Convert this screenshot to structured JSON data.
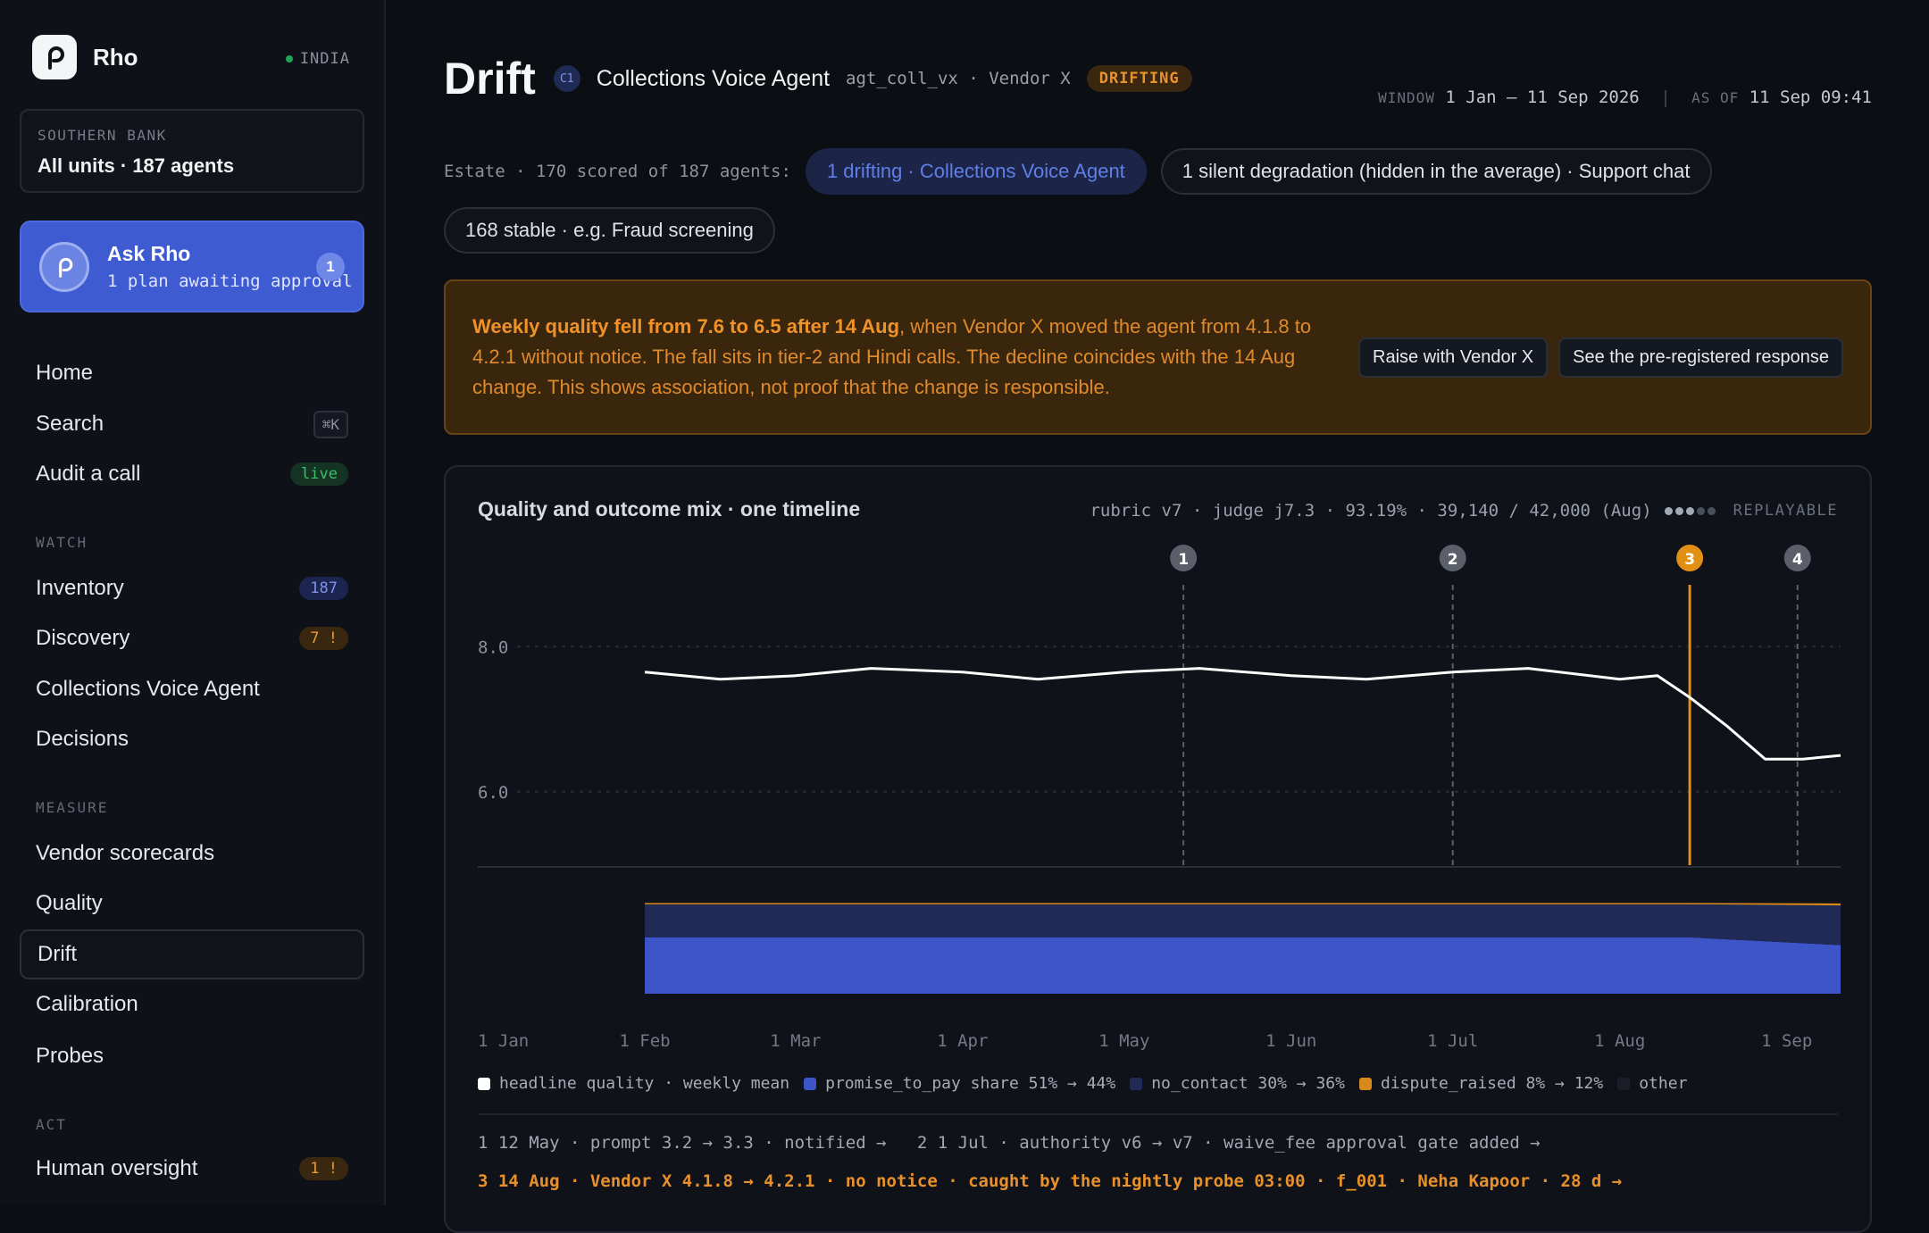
{
  "brand": {
    "name": "Rho",
    "region": "INDIA"
  },
  "org": {
    "label": "SOUTHERN BANK",
    "value": "All units · 187 agents"
  },
  "ask": {
    "title": "Ask Rho",
    "subtitle": "1 plan awaiting approval",
    "badge": "1"
  },
  "nav": {
    "home": "Home",
    "search": "Search",
    "search_kbd": "⌘K",
    "audit": "Audit a call",
    "audit_badge": "live",
    "watch_label": "WATCH",
    "inventory": "Inventory",
    "inventory_badge": "187",
    "discovery": "Discovery",
    "discovery_badge": "7 !",
    "collections": "Collections Voice Agent",
    "decisions": "Decisions",
    "measure_label": "MEASURE",
    "vendor": "Vendor scorecards",
    "quality": "Quality",
    "drift": "Drift",
    "calibration": "Calibration",
    "probes": "Probes",
    "act_label": "ACT",
    "oversight": "Human oversight",
    "oversight_badge": "1 !"
  },
  "header": {
    "title": "Drift",
    "class_badge": "C1",
    "agent": "Collections Voice Agent",
    "meta": "agt_coll_vx · Vendor X",
    "status": "DRIFTING",
    "window_label": "WINDOW",
    "window_value": "1 Jan – 11 Sep 2026",
    "asof_label": "AS OF",
    "asof_value": "11 Sep 09:41"
  },
  "estate": {
    "label": "Estate · 170 scored of 187 agents:",
    "drifting": "1 drifting · Collections Voice Agent",
    "silent": "1 silent degradation (hidden in the average) · Support chat",
    "stable": "168 stable · e.g. Fraud screening"
  },
  "alert": {
    "bold": "Weekly quality fell from 7.6 to 6.5 after 14 Aug",
    "rest": ", when Vendor X moved the agent from 4.1.8 to 4.2.1 without notice. The fall sits in tier-2 and Hindi calls. The decline coincides with the 14 Aug change. This shows association, not proof that the change is responsible.",
    "action_primary": "Raise with Vendor X",
    "action_secondary": "See the pre-registered response"
  },
  "card": {
    "title": "Quality and outcome mix · one timeline",
    "meta": "rubric v7 · judge j7.3 · 93.19% · 39,140 / 42,000 (Aug)",
    "replayable": "REPLAYABLE"
  },
  "colors": {
    "quality": "#ffffff",
    "promise": "#3d55c8",
    "nocontact": "#1f2a57",
    "dispute": "#d9881c",
    "other": "#1a1e26",
    "marker_active": "#e28f16",
    "marker": "#5a5f69"
  },
  "chart_data": {
    "type": "line",
    "x_unit": "date",
    "x_range": [
      "2026-01-01",
      "2026-09-11"
    ],
    "x_ticks": [
      "1 Jan",
      "1 Feb",
      "1 Mar",
      "1 Apr",
      "1 May",
      "1 Jun",
      "1 Jul",
      "1 Aug",
      "1 Sep"
    ],
    "y_ticks": [
      "8.0",
      "6.0"
    ],
    "ylim": [
      5.0,
      9.0
    ],
    "series": [
      {
        "name": "headline quality · weekly mean",
        "x": [
          "2026-02-01",
          "2026-02-15",
          "2026-03-01",
          "2026-03-15",
          "2026-04-01",
          "2026-04-15",
          "2026-05-01",
          "2026-05-15",
          "2026-06-01",
          "2026-06-15",
          "2026-07-01",
          "2026-07-15",
          "2026-08-01",
          "2026-08-08",
          "2026-08-14",
          "2026-08-21",
          "2026-08-28",
          "2026-09-04",
          "2026-09-11"
        ],
        "values": [
          7.65,
          7.55,
          7.6,
          7.7,
          7.65,
          7.55,
          7.65,
          7.7,
          7.6,
          7.55,
          7.65,
          7.7,
          7.55,
          7.6,
          7.3,
          6.9,
          6.45,
          6.45,
          6.5
        ]
      }
    ],
    "mix": {
      "x": [
        "2026-02-01",
        "2026-08-14",
        "2026-09-11"
      ],
      "series": [
        {
          "name": "promise_to_pay",
          "values": [
            0.51,
            0.51,
            0.44
          ]
        },
        {
          "name": "no_contact",
          "values": [
            0.3,
            0.3,
            0.36
          ]
        },
        {
          "name": "dispute_raised",
          "values": [
            0.08,
            0.08,
            0.12
          ]
        }
      ]
    },
    "events": [
      {
        "id": "1",
        "date": "2026-05-12"
      },
      {
        "id": "2",
        "date": "2026-07-01"
      },
      {
        "id": "3",
        "date": "2026-08-14",
        "active": true
      },
      {
        "id": "4",
        "date": "2026-09-03"
      }
    ]
  },
  "legend": {
    "quality": "headline quality · weekly mean",
    "promise": "promise_to_pay share 51% → 44%",
    "nocontact": "no_contact 30% → 36%",
    "dispute": "dispute_raised 8% → 12%",
    "other": "other"
  },
  "event_notes": {
    "e1": "1 12 May · prompt 3.2 → 3.3 · notified →",
    "e2": "2 1 Jul · authority v6 → v7 · waive_fee approval gate added →",
    "e3": "3 14 Aug · Vendor X 4.1.8 → 4.2.1 · no notice · caught by the nightly probe 03:00 · f_001 · Neha Kapoor · 28 d →"
  }
}
